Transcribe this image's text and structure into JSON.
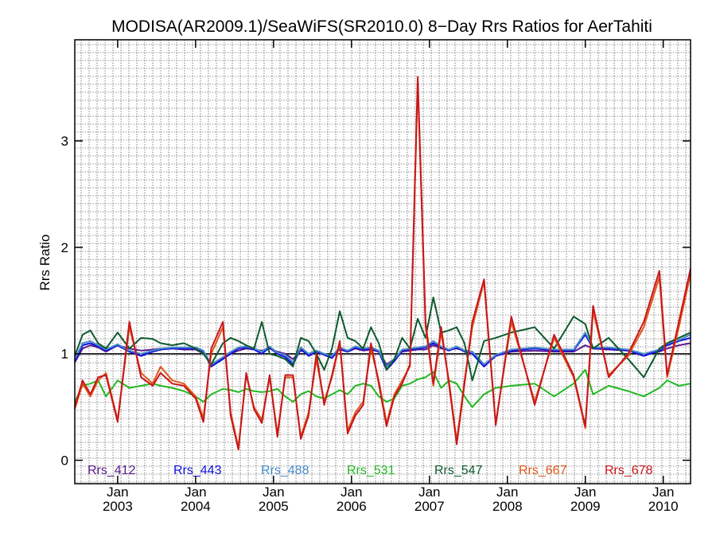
{
  "chart_data": {
    "type": "line",
    "title": "MODISA(AR2009.1)/SeaWiFS(SR2010.0) 8−Day Rrs Ratios for AerTahiti",
    "xlabel": "",
    "ylabel": "Rrs Ratio",
    "xlim": [
      2002.45,
      2010.35
    ],
    "ylim": [
      -0.22,
      3.95
    ],
    "grid": true,
    "y_ticks": [
      "0",
      "1",
      "2",
      "3"
    ],
    "y_tick_values": [
      0,
      1,
      2,
      3
    ],
    "x_ticks": [
      {
        "value": 2003.0,
        "month": "Jan",
        "year": "2003"
      },
      {
        "value": 2004.0,
        "month": "Jan",
        "year": "2004"
      },
      {
        "value": 2005.0,
        "month": "Jan",
        "year": "2005"
      },
      {
        "value": 2006.0,
        "month": "Jan",
        "year": "2006"
      },
      {
        "value": 2007.0,
        "month": "Jan",
        "year": "2007"
      },
      {
        "value": 2008.0,
        "month": "Jan",
        "year": "2008"
      },
      {
        "value": 2009.0,
        "month": "Jan",
        "year": "2009"
      },
      {
        "value": 2010.0,
        "month": "Jan",
        "year": "2010"
      }
    ],
    "reference_line": 1.0,
    "legend_placement": "bottom inside plot",
    "x": [
      2002.45,
      2002.55,
      2002.65,
      2002.75,
      2002.85,
      2003.0,
      2003.15,
      2003.3,
      2003.45,
      2003.55,
      2003.7,
      2003.85,
      2004.0,
      2004.1,
      2004.2,
      2004.35,
      2004.45,
      2004.55,
      2004.65,
      2004.75,
      2004.85,
      2004.95,
      2005.05,
      2005.15,
      2005.25,
      2005.35,
      2005.45,
      2005.55,
      2005.65,
      2005.75,
      2005.85,
      2005.95,
      2006.05,
      2006.15,
      2006.25,
      2006.35,
      2006.45,
      2006.55,
      2006.65,
      2006.75,
      2006.85,
      2006.95,
      2007.05,
      2007.15,
      2007.25,
      2007.35,
      2007.45,
      2007.55,
      2007.7,
      2007.85,
      2008.05,
      2008.35,
      2008.6,
      2008.85,
      2009.0,
      2009.1,
      2009.3,
      2009.55,
      2009.75,
      2009.95,
      2010.05,
      2010.2,
      2010.35
    ],
    "series": [
      {
        "name": "Rrs_412",
        "color": "#5a1b8f",
        "values": [
          0.92,
          1.05,
          1.08,
          1.06,
          1.02,
          1.08,
          1.05,
          1.03,
          1.04,
          1.05,
          1.05,
          1.04,
          1.04,
          1.0,
          0.9,
          0.96,
          1.0,
          1.03,
          1.05,
          1.04,
          1.03,
          1.05,
          1.02,
          1.0,
          0.95,
          1.03,
          1.0,
          1.02,
          1.0,
          0.98,
          1.04,
          1.02,
          1.05,
          1.03,
          1.04,
          1.02,
          0.9,
          0.95,
          1.02,
          1.03,
          1.04,
          1.04,
          1.08,
          1.05,
          1.04,
          1.05,
          1.03,
          1.02,
          0.9,
          0.98,
          1.02,
          1.03,
          1.02,
          1.02,
          1.08,
          1.05,
          1.04,
          1.03,
          1.0,
          1.02,
          1.05,
          1.08,
          1.1
        ]
      },
      {
        "name": "Rrs_443",
        "color": "#1010e0",
        "values": [
          0.93,
          1.08,
          1.1,
          1.07,
          1.03,
          1.08,
          1.02,
          0.98,
          1.02,
          1.04,
          1.05,
          1.05,
          1.05,
          1.02,
          0.88,
          0.95,
          1.0,
          1.05,
          1.06,
          1.04,
          1.0,
          1.06,
          1.0,
          0.97,
          0.9,
          1.05,
          0.98,
          1.02,
          0.99,
          0.96,
          1.05,
          1.02,
          1.06,
          1.04,
          1.05,
          1.02,
          0.85,
          0.93,
          1.03,
          1.04,
          1.05,
          1.06,
          1.1,
          1.06,
          1.03,
          1.06,
          1.02,
          1.0,
          0.88,
          0.98,
          1.03,
          1.05,
          1.03,
          1.03,
          1.18,
          1.05,
          1.05,
          1.03,
          0.98,
          1.03,
          1.08,
          1.12,
          1.15
        ]
      },
      {
        "name": "Rrs_488",
        "color": "#4a8cc8",
        "values": [
          0.95,
          1.1,
          1.12,
          1.08,
          1.04,
          1.09,
          1.03,
          1.0,
          1.03,
          1.05,
          1.06,
          1.06,
          1.06,
          1.03,
          0.9,
          0.97,
          1.02,
          1.06,
          1.07,
          1.05,
          1.02,
          1.07,
          1.01,
          0.99,
          0.92,
          1.06,
          1.0,
          1.03,
          1.0,
          0.98,
          1.06,
          1.03,
          1.07,
          1.05,
          1.06,
          1.03,
          0.88,
          0.95,
          1.04,
          1.05,
          1.06,
          1.07,
          1.12,
          1.07,
          1.04,
          1.07,
          1.03,
          1.02,
          0.9,
          0.99,
          1.04,
          1.06,
          1.04,
          1.04,
          1.2,
          1.06,
          1.06,
          1.04,
          1.0,
          1.04,
          1.1,
          1.13,
          1.18
        ]
      },
      {
        "name": "Rrs_531",
        "color": "#22b822",
        "values": [
          0.55,
          0.7,
          0.72,
          0.75,
          0.6,
          0.75,
          0.68,
          0.7,
          0.72,
          0.7,
          0.68,
          0.65,
          0.6,
          0.55,
          0.62,
          0.67,
          0.66,
          0.64,
          0.67,
          0.65,
          0.64,
          0.65,
          0.67,
          0.6,
          0.55,
          0.62,
          0.65,
          0.6,
          0.58,
          0.62,
          0.66,
          0.62,
          0.7,
          0.72,
          0.7,
          0.6,
          0.55,
          0.58,
          0.7,
          0.72,
          0.76,
          0.78,
          0.83,
          0.68,
          0.75,
          0.72,
          0.6,
          0.5,
          0.62,
          0.68,
          0.7,
          0.72,
          0.6,
          0.72,
          0.85,
          0.62,
          0.7,
          0.65,
          0.6,
          0.68,
          0.75,
          0.7,
          0.72
        ]
      },
      {
        "name": "Rrs_547",
        "color": "#0e5a2e",
        "values": [
          0.98,
          1.18,
          1.22,
          1.1,
          1.05,
          1.2,
          1.05,
          1.15,
          1.14,
          1.1,
          1.08,
          1.1,
          1.05,
          1.0,
          0.9,
          1.1,
          1.15,
          1.12,
          1.08,
          1.05,
          1.3,
          1.0,
          0.98,
          0.95,
          0.88,
          1.15,
          1.12,
          1.0,
          0.85,
          1.05,
          1.4,
          1.15,
          1.12,
          1.05,
          1.25,
          1.1,
          0.85,
          0.95,
          1.15,
          1.05,
          1.33,
          1.15,
          1.53,
          1.2,
          1.22,
          1.25,
          1.1,
          0.75,
          1.12,
          1.15,
          1.2,
          1.25,
          1.05,
          1.35,
          1.28,
          1.05,
          1.15,
          0.95,
          0.78,
          1.05,
          1.1,
          1.15,
          1.2
        ]
      },
      {
        "name": "Rrs_667",
        "color": "#e2561a",
        "values": [
          0.48,
          0.72,
          0.6,
          0.75,
          0.82,
          0.38,
          1.25,
          0.82,
          0.72,
          0.88,
          0.75,
          0.72,
          0.6,
          0.4,
          1.0,
          1.25,
          0.45,
          0.12,
          0.8,
          0.5,
          0.38,
          0.78,
          0.25,
          0.78,
          0.78,
          0.22,
          0.45,
          0.95,
          0.55,
          0.78,
          1.1,
          0.28,
          0.45,
          0.55,
          1.05,
          0.75,
          0.35,
          0.62,
          0.75,
          0.88,
          3.55,
          1.25,
          0.7,
          1.2,
          0.75,
          0.18,
          0.75,
          1.25,
          1.68,
          0.35,
          1.3,
          0.55,
          1.15,
          0.78,
          0.3,
          1.4,
          0.8,
          0.98,
          1.25,
          1.72,
          0.78,
          1.25,
          1.75
        ]
      },
      {
        "name": "Rrs_678",
        "color": "#c8161a",
        "values": [
          0.5,
          0.75,
          0.62,
          0.78,
          0.8,
          0.36,
          1.3,
          0.78,
          0.7,
          0.82,
          0.72,
          0.7,
          0.58,
          0.36,
          1.05,
          1.3,
          0.42,
          0.1,
          0.82,
          0.48,
          0.35,
          0.8,
          0.22,
          0.8,
          0.8,
          0.2,
          0.42,
          1.0,
          0.52,
          0.8,
          1.12,
          0.25,
          0.42,
          0.52,
          1.1,
          0.72,
          0.32,
          0.6,
          0.72,
          0.9,
          3.6,
          1.3,
          0.72,
          1.25,
          0.72,
          0.15,
          0.72,
          1.3,
          1.7,
          0.33,
          1.35,
          0.52,
          1.18,
          0.8,
          0.32,
          1.45,
          0.78,
          1.0,
          1.3,
          1.78,
          0.8,
          1.3,
          1.8
        ]
      }
    ]
  }
}
